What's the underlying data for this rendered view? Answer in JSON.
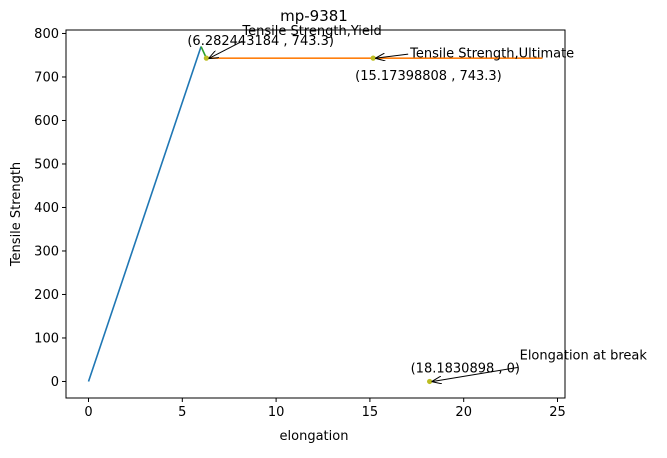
{
  "chart_data": {
    "type": "line",
    "title": "mp-9381",
    "xlabel": "elongation",
    "ylabel": "Tensile Strength",
    "xlim": [
      -1.2,
      25.4
    ],
    "ylim": [
      -38,
      808
    ],
    "grid": false,
    "legend": "none",
    "x_ticks": [
      0,
      5,
      10,
      15,
      20,
      25
    ],
    "y_ticks": [
      0,
      100,
      200,
      300,
      400,
      500,
      600,
      700,
      800
    ],
    "series": [
      {
        "color": "#1f77b4",
        "x": [
          0,
          6.0
        ],
        "y": [
          0,
          770
        ]
      },
      {
        "color": "#2ca02c",
        "x": [
          6.0,
          6.282443184
        ],
        "y": [
          770,
          743.3
        ]
      },
      {
        "color": "#ff7f0e",
        "x": [
          6.282443184,
          24.2
        ],
        "y": [
          743.3,
          743.3
        ]
      }
    ],
    "points": [
      {
        "x": 6.282443184,
        "y": 743.3,
        "color": "#bcbd22",
        "name": "Tensile Strength,Yield",
        "coord_label": "(6.282443184 , 743.3)"
      },
      {
        "x": 15.17398808,
        "y": 743.3,
        "color": "#bcbd22",
        "name": "Tensile Strength,Ultimate",
        "coord_label": "(15.17398808 , 743.3)"
      },
      {
        "x": 18.1830898,
        "y": 0,
        "color": "#bcbd22",
        "name": "Elongation at break",
        "coord_label": "(18.1830898 , 0)"
      }
    ]
  }
}
